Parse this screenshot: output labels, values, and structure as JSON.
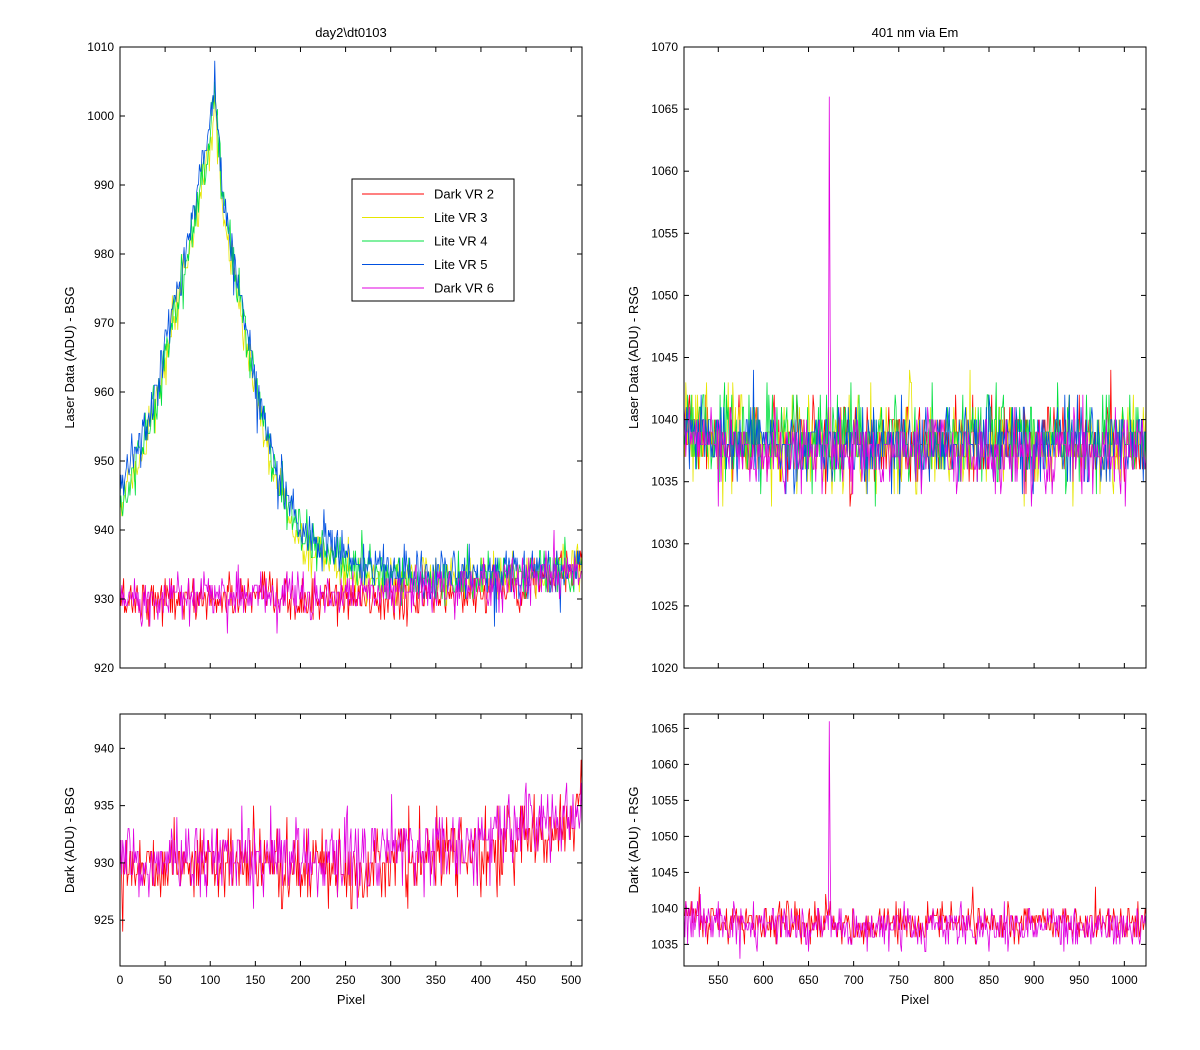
{
  "figure": {
    "legend": [
      {
        "label": "Dark VR 2",
        "color": "#ff0000"
      },
      {
        "label": "Lite VR 3",
        "color": "#e6e600"
      },
      {
        "label": "Lite VR 4",
        "color": "#00e040"
      },
      {
        "label": "Lite VR 5",
        "color": "#0050e0"
      },
      {
        "label": "Dark VR 6",
        "color": "#e000e0"
      }
    ]
  },
  "chart_data": [
    {
      "id": "top-left",
      "type": "line",
      "title": "day2\\dt0103",
      "xlabel": "",
      "ylabel": "Laser Data (ADU) - BSG",
      "xlim": [
        0,
        512
      ],
      "ylim": [
        920,
        1010
      ],
      "xticks": [
        0,
        50,
        100,
        150,
        200,
        250,
        300,
        350,
        400,
        450,
        500
      ],
      "yticks": [
        920,
        930,
        940,
        950,
        960,
        970,
        980,
        990,
        1000,
        1010
      ],
      "show_x_tick_labels": false,
      "legend_position": "top-right",
      "grid": false,
      "series": [
        {
          "name": "Dark VR 2",
          "color": "#ff0000",
          "x": [
            0,
            25,
            50,
            100,
            150,
            200,
            250,
            300,
            350,
            400,
            450,
            500,
            512
          ],
          "y": [
            930,
            930,
            930,
            930,
            930,
            929.5,
            930,
            930,
            930.5,
            931,
            932,
            934,
            935
          ],
          "noise": 1.6
        },
        {
          "name": "Lite VR 3",
          "color": "#e6e600",
          "x": [
            0,
            20,
            40,
            60,
            80,
            90,
            100,
            105,
            112,
            125,
            150,
            175,
            200,
            250,
            300,
            350,
            400,
            450,
            500,
            512
          ],
          "y": [
            943,
            950,
            958,
            970,
            982,
            990,
            995,
            1003,
            988,
            978,
            960,
            946,
            938,
            934,
            933,
            932.5,
            933,
            933.5,
            934,
            934.5
          ],
          "noise": 1.6
        },
        {
          "name": "Lite VR 4",
          "color": "#00e040",
          "x": [
            0,
            20,
            40,
            60,
            80,
            90,
            100,
            105,
            112,
            125,
            150,
            175,
            200,
            250,
            300,
            350,
            400,
            450,
            500,
            512
          ],
          "y": [
            944,
            951,
            959,
            971,
            983,
            991,
            996,
            1005,
            989,
            979,
            961,
            947,
            939,
            935,
            933.5,
            933,
            933,
            933.5,
            934,
            934.5
          ],
          "noise": 1.8
        },
        {
          "name": "Lite VR 5",
          "color": "#0050e0",
          "x": [
            0,
            20,
            40,
            60,
            80,
            90,
            100,
            105,
            112,
            125,
            150,
            175,
            200,
            250,
            300,
            350,
            400,
            450,
            500,
            512
          ],
          "y": [
            945,
            952,
            960,
            972,
            985,
            993,
            997,
            1006,
            990,
            980,
            962,
            948,
            940,
            936,
            934,
            933.5,
            933.5,
            934,
            934.5,
            935
          ],
          "noise": 1.8
        },
        {
          "name": "Dark VR 6",
          "color": "#e000e0",
          "x": [
            0,
            10,
            25,
            40,
            60,
            100,
            150,
            200,
            250,
            300,
            350,
            400,
            450,
            500,
            512
          ],
          "y": [
            930,
            930,
            929,
            930,
            930.5,
            930.5,
            930.5,
            930.5,
            931,
            931,
            931.5,
            932,
            933,
            934,
            934.5
          ],
          "noise": 1.6
        }
      ]
    },
    {
      "id": "top-right",
      "type": "line",
      "title": "401 nm via Em",
      "xlabel": "",
      "ylabel": "Laser Data (ADU) - RSG",
      "xlim": [
        512,
        1024
      ],
      "ylim": [
        1020,
        1070
      ],
      "xticks": [
        550,
        600,
        650,
        700,
        750,
        800,
        850,
        900,
        950,
        1000
      ],
      "yticks": [
        1020,
        1025,
        1030,
        1035,
        1040,
        1045,
        1050,
        1055,
        1060,
        1065,
        1070
      ],
      "show_x_tick_labels": false,
      "grid": false,
      "series": [
        {
          "name": "Dark VR 2",
          "color": "#ff0000",
          "x": [
            512,
            520,
            560,
            1024
          ],
          "y": [
            1040,
            1039,
            1038,
            1038
          ],
          "noise": 1.5
        },
        {
          "name": "Lite VR 3",
          "color": "#e6e600",
          "x": [
            512,
            520,
            560,
            1024
          ],
          "y": [
            1040,
            1039,
            1038,
            1038
          ],
          "noise": 1.8
        },
        {
          "name": "Lite VR 4",
          "color": "#00e040",
          "x": [
            512,
            520,
            560,
            1024
          ],
          "y": [
            1040,
            1039.5,
            1038.5,
            1038.5
          ],
          "noise": 1.8
        },
        {
          "name": "Lite VR 5",
          "color": "#0050e0",
          "x": [
            512,
            520,
            560,
            1024
          ],
          "y": [
            1040,
            1039,
            1038,
            1038
          ],
          "noise": 1.7
        },
        {
          "name": "Dark VR 6",
          "color": "#e000e0",
          "x": [
            512,
            520,
            560,
            1024
          ],
          "y": [
            1039.5,
            1038.5,
            1037.5,
            1037.5
          ],
          "noise": 1.5,
          "spike_x": 673,
          "spike_y": 1066
        }
      ]
    },
    {
      "id": "bottom-left",
      "type": "line",
      "title": "",
      "xlabel": "Pixel",
      "ylabel": "Dark (ADU) - BSG",
      "xlim": [
        0,
        512
      ],
      "ylim": [
        921,
        943
      ],
      "xticks": [
        0,
        50,
        100,
        150,
        200,
        250,
        300,
        350,
        400,
        450,
        500
      ],
      "yticks": [
        925,
        930,
        935,
        940
      ],
      "show_x_tick_labels": true,
      "grid": false,
      "series": [
        {
          "name": "Dark VR 2",
          "color": "#ff0000",
          "x": [
            0,
            100,
            200,
            300,
            350,
            400,
            450,
            500,
            512
          ],
          "y": [
            930,
            930,
            929.5,
            930,
            930.5,
            931,
            932,
            934,
            935
          ],
          "noise": 1.6
        },
        {
          "name": "Dark VR 6",
          "color": "#e000e0",
          "x": [
            0,
            10,
            25,
            40,
            60,
            100,
            200,
            300,
            350,
            400,
            450,
            500,
            512
          ],
          "y": [
            930,
            930,
            929,
            930,
            930.5,
            930.5,
            930.5,
            931,
            931.5,
            932,
            933,
            934,
            934.5
          ],
          "noise": 1.6
        }
      ]
    },
    {
      "id": "bottom-right",
      "type": "line",
      "title": "",
      "xlabel": "Pixel",
      "ylabel": "Dark (ADU) - RSG",
      "xlim": [
        512,
        1024
      ],
      "ylim": [
        1032,
        1067
      ],
      "xticks": [
        550,
        600,
        650,
        700,
        750,
        800,
        850,
        900,
        950,
        1000
      ],
      "yticks": [
        1035,
        1040,
        1045,
        1050,
        1055,
        1060,
        1065
      ],
      "show_x_tick_labels": true,
      "grid": false,
      "series": [
        {
          "name": "Dark VR 2",
          "color": "#ff0000",
          "x": [
            512,
            520,
            560,
            1024
          ],
          "y": [
            1040,
            1039,
            1038,
            1038
          ],
          "noise": 1.4
        },
        {
          "name": "Dark VR 6",
          "color": "#e000e0",
          "x": [
            512,
            520,
            560,
            1024
          ],
          "y": [
            1039.5,
            1038.5,
            1037.5,
            1037.5
          ],
          "noise": 1.4,
          "spike_x": 673,
          "spike_y": 1066
        }
      ]
    }
  ]
}
